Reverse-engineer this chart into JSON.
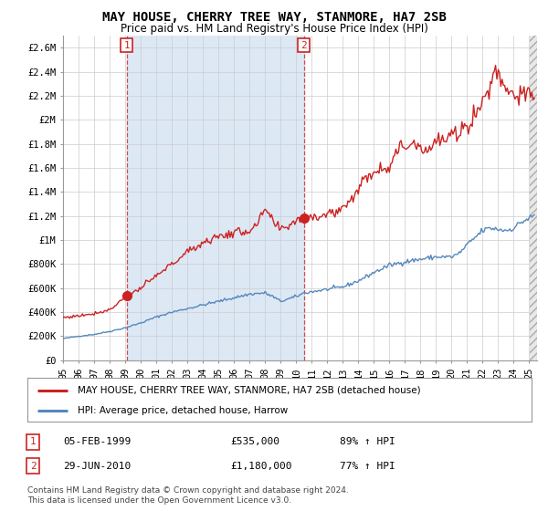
{
  "title": "MAY HOUSE, CHERRY TREE WAY, STANMORE, HA7 2SB",
  "subtitle": "Price paid vs. HM Land Registry's House Price Index (HPI)",
  "legend_line1": "MAY HOUSE, CHERRY TREE WAY, STANMORE, HA7 2SB (detached house)",
  "legend_line2": "HPI: Average price, detached house, Harrow",
  "annotation1_label": "1",
  "annotation1_date": "05-FEB-1999",
  "annotation1_price": "£535,000",
  "annotation1_hpi": "89% ↑ HPI",
  "annotation2_label": "2",
  "annotation2_date": "29-JUN-2010",
  "annotation2_price": "£1,180,000",
  "annotation2_hpi": "77% ↑ HPI",
  "footnote": "Contains HM Land Registry data © Crown copyright and database right 2024.\nThis data is licensed under the Open Government Licence v3.0.",
  "sale1_x": 1999.09,
  "sale1_y": 535000,
  "sale2_x": 2010.49,
  "sale2_y": 1180000,
  "hpi_line_color": "#5588bb",
  "price_line_color": "#cc2222",
  "background_color": "#ffffff",
  "shading_color": "#dde8f5",
  "grid_color": "#cccccc",
  "ylim_min": 0,
  "ylim_max": 2700000,
  "xlim_min": 1995.0,
  "xlim_max": 2025.5,
  "yticks": [
    0,
    200000,
    400000,
    600000,
    800000,
    1000000,
    1200000,
    1400000,
    1600000,
    1800000,
    2000000,
    2200000,
    2400000,
    2600000
  ],
  "ytick_labels": [
    "£0",
    "£200K",
    "£400K",
    "£600K",
    "£800K",
    "£1M",
    "£1.2M",
    "£1.4M",
    "£1.6M",
    "£1.8M",
    "£2M",
    "£2.2M",
    "£2.4M",
    "£2.6M"
  ],
  "xtick_years": [
    1995,
    1996,
    1997,
    1998,
    1999,
    2000,
    2001,
    2002,
    2003,
    2004,
    2005,
    2006,
    2007,
    2008,
    2009,
    2010,
    2011,
    2012,
    2013,
    2014,
    2015,
    2016,
    2017,
    2018,
    2019,
    2020,
    2021,
    2022,
    2023,
    2024,
    2025
  ]
}
